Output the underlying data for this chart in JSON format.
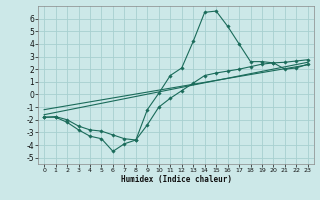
{
  "title": "",
  "xlabel": "Humidex (Indice chaleur)",
  "bg_color": "#cce8e8",
  "grid_color": "#a8d0d0",
  "line_color": "#1a6b5a",
  "xlim": [
    -0.5,
    23.5
  ],
  "ylim": [
    -5.5,
    7.0
  ],
  "xticks": [
    0,
    1,
    2,
    3,
    4,
    5,
    6,
    7,
    8,
    9,
    10,
    11,
    12,
    13,
    14,
    15,
    16,
    17,
    18,
    19,
    20,
    21,
    22,
    23
  ],
  "yticks": [
    -5,
    -4,
    -3,
    -2,
    -1,
    0,
    1,
    2,
    3,
    4,
    5,
    6
  ],
  "curve1_x": [
    0,
    1,
    2,
    3,
    4,
    5,
    6,
    7,
    8,
    9,
    10,
    11,
    12,
    13,
    14,
    15,
    16,
    17,
    18,
    19,
    20,
    21,
    22,
    23
  ],
  "curve1_y": [
    -1.8,
    -1.8,
    -2.2,
    -2.8,
    -3.3,
    -3.5,
    -4.5,
    -3.9,
    -3.6,
    -1.2,
    0.1,
    1.5,
    2.1,
    4.2,
    6.5,
    6.6,
    5.4,
    4.0,
    2.6,
    2.6,
    2.5,
    2.0,
    2.1,
    2.4
  ],
  "curve2_x": [
    0,
    1,
    2,
    3,
    4,
    5,
    6,
    7,
    8,
    9,
    10,
    11,
    12,
    13,
    14,
    15,
    16,
    17,
    18,
    19,
    20,
    21,
    22,
    23
  ],
  "curve2_y": [
    -1.8,
    -1.75,
    -2.0,
    -2.5,
    -2.8,
    -2.9,
    -3.2,
    -3.5,
    -3.6,
    -2.4,
    -1.0,
    -0.3,
    0.3,
    0.9,
    1.5,
    1.7,
    1.85,
    2.0,
    2.2,
    2.4,
    2.5,
    2.55,
    2.65,
    2.75
  ],
  "line1_x": [
    0,
    23
  ],
  "line1_y": [
    -1.6,
    2.55
  ],
  "line2_x": [
    0,
    23
  ],
  "line2_y": [
    -1.2,
    2.35
  ]
}
